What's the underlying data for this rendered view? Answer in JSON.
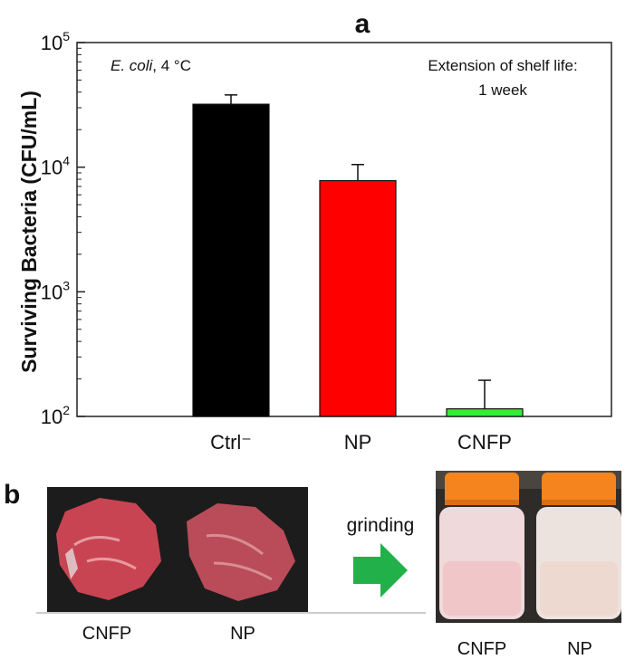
{
  "chart_data": {
    "type": "bar",
    "panel_label": "a",
    "categories": [
      "Ctrl⁻",
      "NP",
      "CNFP"
    ],
    "values": [
      32000,
      7800,
      115
    ],
    "error_upper": [
      38000,
      10500,
      195
    ],
    "bar_colors": [
      "#000000",
      "#ff0000",
      "#33ee33"
    ],
    "ylabel": "Surviving Bacteria (CFU/mL)",
    "yscale": "log",
    "ylim": [
      100,
      100000
    ],
    "yticks": [
      {
        "value": 100,
        "base": "10",
        "exp": "2"
      },
      {
        "value": 1000,
        "base": "10",
        "exp": "3"
      },
      {
        "value": 10000,
        "base": "10",
        "exp": "4"
      },
      {
        "value": 100000,
        "base": "10",
        "exp": "5"
      }
    ],
    "annotation_left": {
      "organism": "E. coli",
      "condition": ", 4 °C"
    },
    "annotation_right": [
      "Extension of shelf life:",
      "1 week"
    ]
  },
  "panel_b": {
    "label": "b",
    "meat_labels": [
      "CNFP",
      "NP"
    ],
    "arrow_label": "grinding",
    "bottle_labels": [
      "CNFP",
      "NP"
    ],
    "arrow_color": "#22b04a",
    "cap_color": "#f5841f"
  }
}
